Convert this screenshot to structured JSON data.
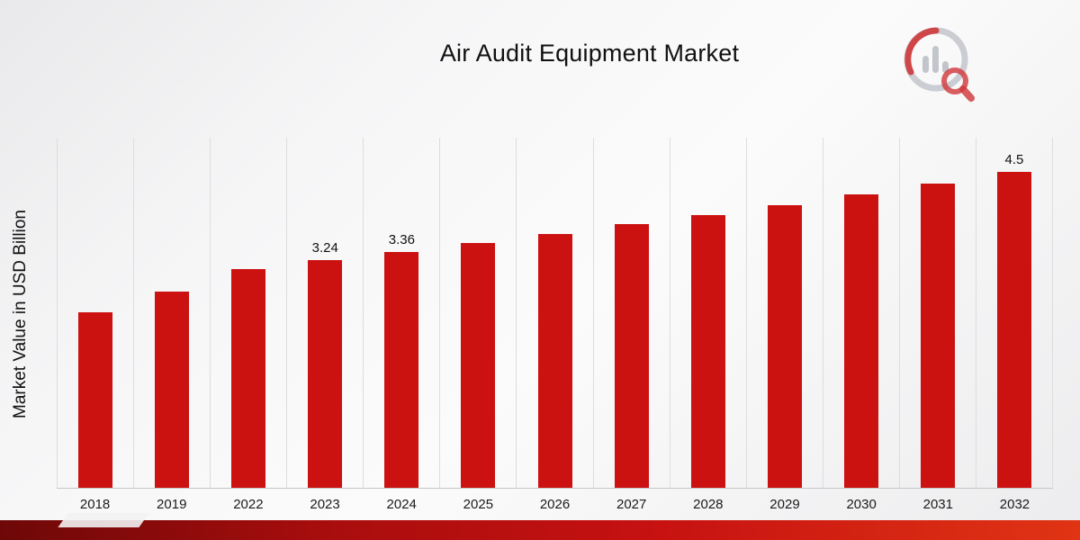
{
  "header": {
    "title": "Air Audit Equipment Market",
    "logo_name": "bar-chart-magnifier-logo"
  },
  "colors": {
    "bar": "#CC1111",
    "ribbon_dark": "#6E0808",
    "ribbon_light": "#E03414",
    "gridline": "#DDDDDD",
    "logo_gray": "#BFC3CB",
    "logo_red": "#C9151A"
  },
  "chart_data": {
    "type": "bar",
    "title": "Air Audit Equipment Market",
    "xlabel": "",
    "ylabel": "Market Value in USD Billion",
    "ylim": [
      0,
      5
    ],
    "grid": "vertical",
    "legend": "none",
    "bar_color": "#CC1111",
    "categories": [
      "2018",
      "2019",
      "2022",
      "2023",
      "2024",
      "2025",
      "2026",
      "2027",
      "2028",
      "2029",
      "2030",
      "2031",
      "2032"
    ],
    "values": [
      2.5,
      2.8,
      3.12,
      3.24,
      3.36,
      3.49,
      3.62,
      3.75,
      3.89,
      4.03,
      4.18,
      4.33,
      4.5
    ],
    "data_labels": {
      "2023": "3.24",
      "2024": "3.36",
      "2032": "4.5"
    }
  }
}
